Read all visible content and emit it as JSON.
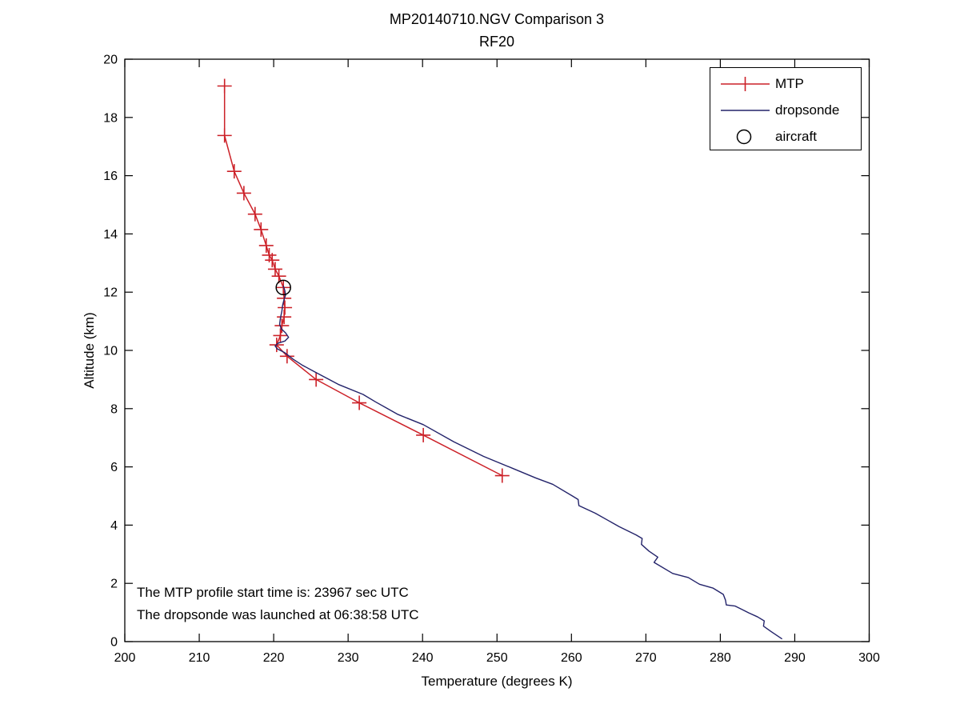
{
  "title": {
    "line1": "MP20140710.NGV Comparison 3",
    "line2": "RF20"
  },
  "axes": {
    "xlabel": "Temperature (degrees K)",
    "ylabel": "Altitude (km)",
    "x_ticks": [
      200,
      210,
      220,
      230,
      240,
      250,
      260,
      270,
      280,
      290,
      300
    ],
    "y_ticks": [
      0,
      2,
      4,
      6,
      8,
      10,
      12,
      14,
      16,
      18,
      20
    ]
  },
  "legend": {
    "items": [
      {
        "label": "MTP",
        "marker": "plus-line"
      },
      {
        "label": "dropsonde",
        "marker": "line"
      },
      {
        "label": "aircraft",
        "marker": "open-circle"
      }
    ]
  },
  "annotations": [
    "The MTP profile start time is: 23967 sec UTC",
    "The dropsonde was launched at 06:38:58 UTC"
  ],
  "colors": {
    "mtp": "#cc2128",
    "dropsonde": "#23236a",
    "aircraft": "#000000",
    "axis": "#000000"
  },
  "chart_data": {
    "type": "line",
    "title": "MP20140710.NGV Comparison 3",
    "subtitle": "RF20",
    "xlabel": "Temperature (degrees K)",
    "ylabel": "Altitude (km)",
    "xlim": [
      200,
      300
    ],
    "ylim": [
      0,
      20
    ],
    "grid": false,
    "legend_position": "top-right",
    "series": [
      {
        "name": "MTP",
        "style": "line-with-plus-markers",
        "color": "#cc2128",
        "points": [
          [
            213.4,
            19.08
          ],
          [
            213.4,
            17.38
          ],
          [
            214.7,
            16.15
          ],
          [
            216.0,
            15.4
          ],
          [
            217.5,
            14.68
          ],
          [
            218.3,
            14.15
          ],
          [
            219.0,
            13.6
          ],
          [
            219.4,
            13.27
          ],
          [
            219.8,
            13.1
          ],
          [
            220.2,
            12.79
          ],
          [
            220.7,
            12.55
          ],
          [
            221.3,
            12.16
          ],
          [
            221.4,
            11.79
          ],
          [
            221.5,
            11.47
          ],
          [
            221.4,
            11.15
          ],
          [
            221.1,
            10.85
          ],
          [
            220.9,
            10.51
          ],
          [
            220.4,
            10.19
          ],
          [
            221.8,
            9.8
          ],
          [
            225.7,
            9.0
          ],
          [
            231.5,
            8.2
          ],
          [
            240.1,
            7.09
          ],
          [
            250.7,
            5.7
          ]
        ]
      },
      {
        "name": "dropsonde",
        "style": "line",
        "color": "#23236a",
        "points": [
          [
            221.3,
            12.22
          ],
          [
            221.5,
            12.05
          ],
          [
            221.6,
            11.9
          ],
          [
            221.4,
            11.75
          ],
          [
            221.2,
            11.55
          ],
          [
            221.1,
            11.35
          ],
          [
            220.9,
            11.1
          ],
          [
            220.8,
            10.9
          ],
          [
            221.0,
            10.75
          ],
          [
            221.6,
            10.6
          ],
          [
            222.0,
            10.45
          ],
          [
            221.5,
            10.32
          ],
          [
            220.6,
            10.25
          ],
          [
            220.2,
            10.15
          ],
          [
            220.5,
            10.05
          ],
          [
            221.5,
            9.92
          ],
          [
            222.6,
            9.7
          ],
          [
            223.8,
            9.5
          ],
          [
            225.6,
            9.25
          ],
          [
            228.8,
            8.82
          ],
          [
            232.0,
            8.49
          ],
          [
            233.7,
            8.23
          ],
          [
            236.7,
            7.8
          ],
          [
            240.1,
            7.45
          ],
          [
            244.2,
            6.86
          ],
          [
            248.2,
            6.36
          ],
          [
            252.1,
            5.95
          ],
          [
            255.2,
            5.62
          ],
          [
            257.5,
            5.4
          ],
          [
            260.2,
            4.99
          ],
          [
            260.9,
            4.88
          ],
          [
            261.0,
            4.67
          ],
          [
            263.2,
            4.41
          ],
          [
            266.4,
            3.95
          ],
          [
            268.7,
            3.66
          ],
          [
            269.5,
            3.54
          ],
          [
            269.4,
            3.34
          ],
          [
            270.4,
            3.11
          ],
          [
            271.6,
            2.9
          ],
          [
            271.1,
            2.72
          ],
          [
            273.6,
            2.34
          ],
          [
            275.7,
            2.2
          ],
          [
            277.2,
            1.97
          ],
          [
            279.0,
            1.84
          ],
          [
            280.4,
            1.62
          ],
          [
            280.7,
            1.42
          ],
          [
            280.8,
            1.26
          ],
          [
            282.0,
            1.22
          ],
          [
            283.8,
            0.99
          ],
          [
            285.0,
            0.85
          ],
          [
            285.9,
            0.71
          ],
          [
            285.8,
            0.53
          ],
          [
            286.8,
            0.35
          ],
          [
            287.9,
            0.16
          ],
          [
            288.3,
            0.09
          ]
        ]
      },
      {
        "name": "aircraft",
        "style": "open-circle-marker",
        "color": "#000000",
        "points": [
          [
            221.3,
            12.16
          ]
        ]
      }
    ]
  }
}
